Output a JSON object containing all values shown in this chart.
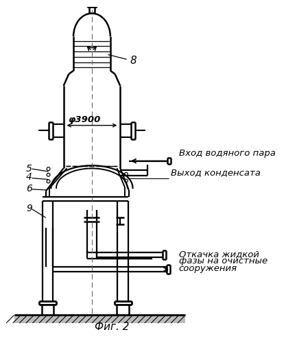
{
  "title": "Фиг. 2",
  "label_8": "8",
  "label_5": "5",
  "label_4": "4",
  "label_6": "6",
  "label_9": "9",
  "label_phi": "φ3900",
  "text_vhod": "Вход водяного пара",
  "text_vyhod": "Выход конденсата",
  "text_otk1": "Откачка жидкой",
  "text_otk2": "фазы на очистные",
  "text_otk3": "сооружения",
  "bg_color": "#ffffff",
  "line_color": "#000000"
}
